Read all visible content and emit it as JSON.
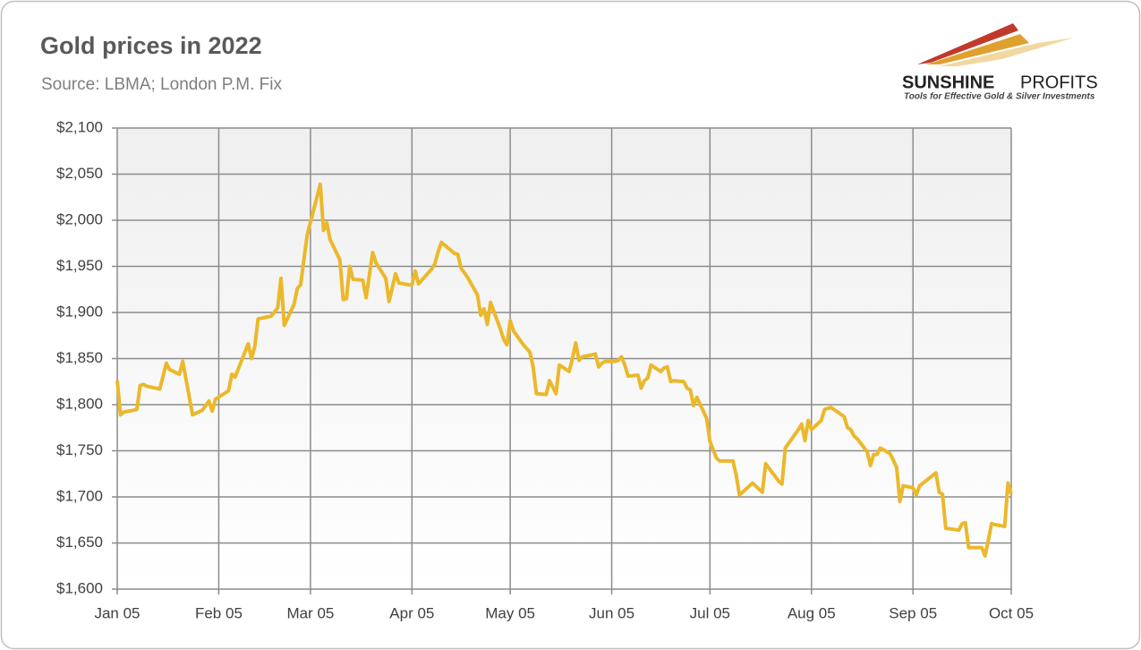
{
  "chart_data": {
    "type": "line",
    "title": "Gold prices in 2022",
    "subtitle": "Source: LBMA; London P.M. Fix",
    "logo": {
      "name_bold": "SUNSHINE",
      "name_light": "PROFITS",
      "tagline": "Tools for Effective Gold & Silver Investments"
    },
    "color": "#ebb82a",
    "grid": true,
    "xlim": [
      "Jan 05",
      "Oct 05"
    ],
    "xticks": [
      "Jan 05",
      "Feb 05",
      "Mar 05",
      "Apr 05",
      "May 05",
      "Jun 05",
      "Jul 05",
      "Aug 05",
      "Sep 05",
      "Oct 05"
    ],
    "ylim": [
      1600,
      2100
    ],
    "yticks": [
      {
        "value": 1600,
        "label": "$1,600"
      },
      {
        "value": 1650,
        "label": "$1,650"
      },
      {
        "value": 1700,
        "label": "$1,700"
      },
      {
        "value": 1750,
        "label": "$1,750"
      },
      {
        "value": 1800,
        "label": "$1,800"
      },
      {
        "value": 1850,
        "label": "$1,850"
      },
      {
        "value": 1900,
        "label": "$1,900"
      },
      {
        "value": 1950,
        "label": "$1,950"
      },
      {
        "value": 2000,
        "label": "$2,000"
      },
      {
        "value": 2050,
        "label": "$2,050"
      },
      {
        "value": 2100,
        "label": "$2,100"
      }
    ],
    "x": [
      "Jan 05",
      "Jan 06",
      "Jan 07",
      "Jan 10",
      "Jan 11",
      "Jan 12",
      "Jan 13",
      "Jan 14",
      "Jan 18",
      "Jan 20",
      "Jan 21",
      "Jan 24",
      "Jan 25",
      "Jan 28",
      "Jan 31",
      "Feb 02",
      "Feb 03",
      "Feb 04",
      "Feb 08",
      "Feb 09",
      "Feb 10",
      "Feb 14",
      "Feb 15",
      "Feb 16",
      "Feb 17",
      "Feb 21",
      "Feb 23",
      "Feb 24",
      "Feb 25",
      "Feb 28",
      "Mar 01",
      "Mar 02",
      "Mar 03",
      "Mar 04",
      "Mar 08",
      "Mar 09",
      "Mar 10",
      "Mar 11",
      "Mar 14",
      "Mar 15",
      "Mar 16",
      "Mar 17",
      "Mar 18",
      "Mar 21",
      "Mar 22",
      "Mar 24",
      "Mar 25",
      "Mar 28",
      "Mar 29",
      "Mar 31",
      "Apr 01",
      "Apr 04",
      "Apr 05",
      "Apr 06",
      "Apr 07",
      "Apr 08",
      "Apr 11",
      "Apr 12",
      "Apr 13",
      "Apr 14",
      "Apr 18",
      "Apr 19",
      "Apr 20",
      "Apr 22",
      "Apr 25",
      "Apr 26",
      "Apr 27",
      "Apr 28",
      "Apr 29",
      "May 02",
      "May 03",
      "May 04",
      "May 05",
      "May 06",
      "May 09",
      "May 11",
      "May 12",
      "May 13",
      "May 16",
      "May 17",
      "May 19",
      "May 20",
      "May 23",
      "May 24",
      "May 25",
      "May 26",
      "May 27",
      "May 30",
      "May 31",
      "Jun 01",
      "Jun 02",
      "Jun 03",
      "Jun 06",
      "Jun 07",
      "Jun 08",
      "Jun 09",
      "Jun 10",
      "Jun 13",
      "Jun 14",
      "Jun 15",
      "Jun 16",
      "Jun 17",
      "Jun 20",
      "Jun 21",
      "Jun 22",
      "Jun 23",
      "Jun 24",
      "Jun 27",
      "Jun 28",
      "Jun 29",
      "Jun 30",
      "Jul 01",
      "Jul 04",
      "Jul 05",
      "Jul 07",
      "Jul 08",
      "Jul 12",
      "Jul 13",
      "Jul 14",
      "Jul 18",
      "Jul 21",
      "Jul 22",
      "Jul 26",
      "Jul 27",
      "Jul 28",
      "Jul 29",
      "Aug 01",
      "Aug 02",
      "Aug 03",
      "Aug 04",
      "Aug 05",
      "Aug 08",
      "Aug 09",
      "Aug 11",
      "Aug 15",
      "Aug 16",
      "Aug 17",
      "Aug 18",
      "Aug 19",
      "Aug 22",
      "Aug 23",
      "Aug 24",
      "Aug 25",
      "Aug 26",
      "Aug 29",
      "Aug 31",
      "Sep 01",
      "Sep 02",
      "Sep 05",
      "Sep 06",
      "Sep 07",
      "Sep 12",
      "Sep 13",
      "Sep 14",
      "Sep 15",
      "Sep 19",
      "Sep 20",
      "Sep 21",
      "Sep 22",
      "Sep 26",
      "Sep 27",
      "Sep 28",
      "Sep 29",
      "Sep 30",
      "Oct 03",
      "Oct 04",
      "Oct 05"
    ],
    "values": [
      1826,
      1789,
      1792,
      1794,
      1795,
      1821,
      1822,
      1820,
      1817,
      1845,
      1838,
      1833,
      1847,
      1789,
      1794,
      1804,
      1793,
      1806,
      1815,
      1833,
      1830,
      1866,
      1850,
      1863,
      1893,
      1896,
      1905,
      1937,
      1886,
      1909,
      1926,
      1930,
      1957,
      1984,
      2039,
      1989,
      1997,
      1979,
      1957,
      1914,
      1915,
      1950,
      1936,
      1935,
      1916,
      1965,
      1954,
      1937,
      1912,
      1942,
      1932,
      1930,
      1930,
      1945,
      1931,
      1935,
      1947,
      1953,
      1966,
      1976,
      1964,
      1963,
      1948,
      1938,
      1919,
      1897,
      1904,
      1887,
      1911,
      1882,
      1871,
      1865,
      1891,
      1880,
      1865,
      1857,
      1841,
      1812,
      1811,
      1826,
      1812,
      1843,
      1836,
      1850,
      1867,
      1848,
      1852,
      1854,
      1855,
      1841,
      1845,
      1847,
      1847,
      1848,
      1852,
      1843,
      1831,
      1832,
      1818,
      1826,
      1829,
      1843,
      1836,
      1840,
      1841,
      1825,
      1826,
      1825,
      1818,
      1816,
      1799,
      1808,
      1785,
      1760,
      1742,
      1739,
      1739,
      1724,
      1702,
      1715,
      1705,
      1736,
      1717,
      1714,
      1753,
      1758,
      1773,
      1779,
      1761,
      1783,
      1773,
      1783,
      1795,
      1797,
      1787,
      1775,
      1773,
      1766,
      1763,
      1749,
      1734,
      1746,
      1746,
      1753,
      1747,
      1732,
      1695,
      1712,
      1710,
      1702,
      1712,
      1726,
      1705,
      1703,
      1666,
      1664,
      1671,
      1672,
      1645,
      1645,
      1636,
      1653,
      1671,
      1670,
      1668,
      1715,
      1703
    ]
  }
}
